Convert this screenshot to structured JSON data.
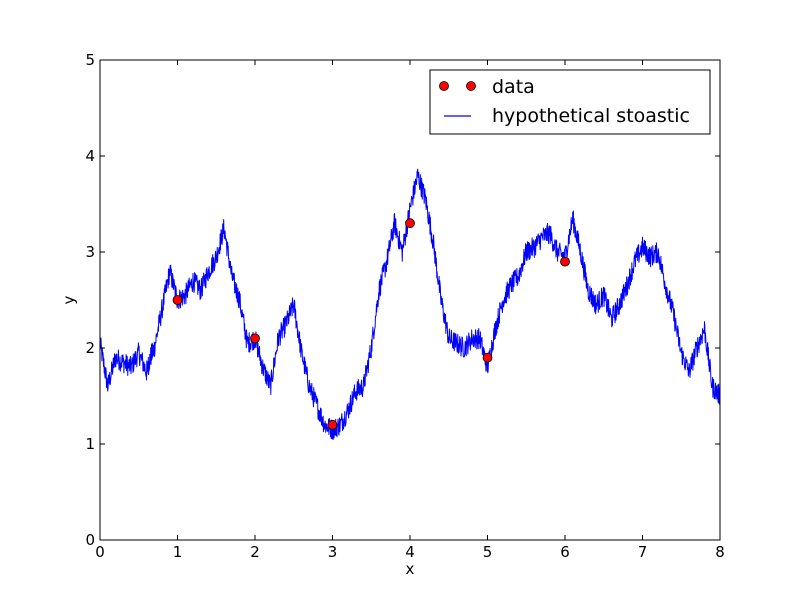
{
  "chart_data": {
    "type": "line",
    "xlabel": "x",
    "ylabel": "y",
    "xlim": [
      0,
      8
    ],
    "ylim": [
      0,
      5
    ],
    "xticks": [
      "0",
      "1",
      "2",
      "3",
      "4",
      "5",
      "6",
      "7",
      "8"
    ],
    "yticks": [
      "0",
      "1",
      "2",
      "3",
      "4",
      "5"
    ],
    "grid": false,
    "legend_position": "top-right",
    "series": [
      {
        "name": "data",
        "style": "markers",
        "color": "#ff0000",
        "x": [
          1,
          2,
          3,
          4,
          5,
          6
        ],
        "y": [
          2.5,
          2.1,
          1.2,
          3.3,
          1.9,
          2.9
        ]
      },
      {
        "name": "hypothetical stoastic",
        "style": "line",
        "color": "#0000ff",
        "x": [
          0,
          0.1,
          0.2,
          0.3,
          0.4,
          0.5,
          0.6,
          0.65,
          0.7,
          0.8,
          0.9,
          1.0,
          1.1,
          1.2,
          1.3,
          1.4,
          1.5,
          1.6,
          1.7,
          1.8,
          1.9,
          2.0,
          2.1,
          2.2,
          2.3,
          2.4,
          2.5,
          2.6,
          2.7,
          2.8,
          2.9,
          3.0,
          3.1,
          3.2,
          3.3,
          3.4,
          3.5,
          3.6,
          3.7,
          3.8,
          3.9,
          4.0,
          4.1,
          4.2,
          4.3,
          4.4,
          4.5,
          4.6,
          4.7,
          4.8,
          4.9,
          5.0,
          5.1,
          5.2,
          5.3,
          5.4,
          5.5,
          5.6,
          5.7,
          5.8,
          5.9,
          6.0,
          6.1,
          6.2,
          6.3,
          6.4,
          6.5,
          6.6,
          6.7,
          6.8,
          6.9,
          7.0,
          7.1,
          7.2,
          7.3,
          7.4,
          7.5,
          7.6,
          7.7,
          7.8,
          7.9,
          8.0
        ],
        "y": [
          2.05,
          1.6,
          1.9,
          1.85,
          1.8,
          1.95,
          1.75,
          1.9,
          2.0,
          2.4,
          2.8,
          2.5,
          2.55,
          2.7,
          2.6,
          2.8,
          2.95,
          3.25,
          2.75,
          2.5,
          2.05,
          2.1,
          1.8,
          1.6,
          2.1,
          2.25,
          2.45,
          1.95,
          1.6,
          1.4,
          1.2,
          1.15,
          1.2,
          1.35,
          1.55,
          1.6,
          2.0,
          2.6,
          2.9,
          3.3,
          3.0,
          3.45,
          3.8,
          3.55,
          3.1,
          2.5,
          2.1,
          2.05,
          2.0,
          2.1,
          2.1,
          1.8,
          2.2,
          2.5,
          2.65,
          2.75,
          3.0,
          3.05,
          3.15,
          3.2,
          3.0,
          2.95,
          3.35,
          3.0,
          2.6,
          2.45,
          2.55,
          2.3,
          2.45,
          2.65,
          2.9,
          3.05,
          2.95,
          3.0,
          2.65,
          2.35,
          1.95,
          1.75,
          2.0,
          2.2,
          1.6,
          1.5
        ]
      }
    ]
  }
}
